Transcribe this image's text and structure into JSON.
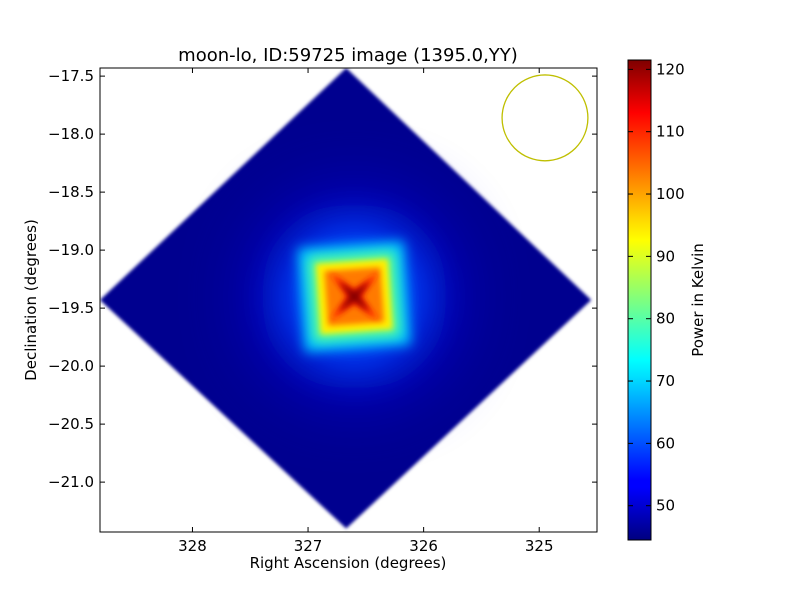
{
  "chart_data": {
    "type": "heatmap",
    "title": "moon-lo, ID:59725 image (1395.0,YY)",
    "xlabel": "Right Ascension (degrees)",
    "ylabel": "Declination (degrees)",
    "xlim": [
      328.8,
      324.5
    ],
    "ylim": [
      -21.43,
      -17.43
    ],
    "x_ticks": [
      328,
      327,
      326,
      325
    ],
    "x_tick_labels": [
      "328",
      "327",
      "326",
      "325"
    ],
    "y_ticks": [
      -17.5,
      -18.0,
      -18.5,
      -19.0,
      -19.5,
      -20.0,
      -20.5,
      -21.0
    ],
    "y_tick_labels": [
      "−17.5",
      "−18.0",
      "−18.5",
      "−19.0",
      "−19.5",
      "−20.0",
      "−20.5",
      "−21.0"
    ],
    "footprint": {
      "shape": "diamond",
      "vertices": [
        {
          "ra": 326.67,
          "dec": -17.43
        },
        {
          "ra": 324.55,
          "dec": -19.43
        },
        {
          "ra": 326.67,
          "dec": -21.4
        },
        {
          "ra": 328.8,
          "dec": -19.43
        }
      ]
    },
    "source": {
      "ra": 326.6,
      "dec": -19.4,
      "peak_kelvin": 120,
      "background_kelvin": 46
    },
    "beam_circle": {
      "ra": 324.95,
      "dec": -17.86,
      "radius_deg": 0.37,
      "color": "#bfbf00"
    },
    "colorbar": {
      "label": "Power in Kelvin",
      "vmin": 44.5,
      "vmax": 121.5,
      "ticks": [
        50,
        60,
        70,
        80,
        90,
        100,
        110,
        120
      ],
      "tick_labels": [
        "50",
        "60",
        "70",
        "80",
        "90",
        "100",
        "110",
        "120"
      ],
      "colormap": "jet"
    }
  }
}
